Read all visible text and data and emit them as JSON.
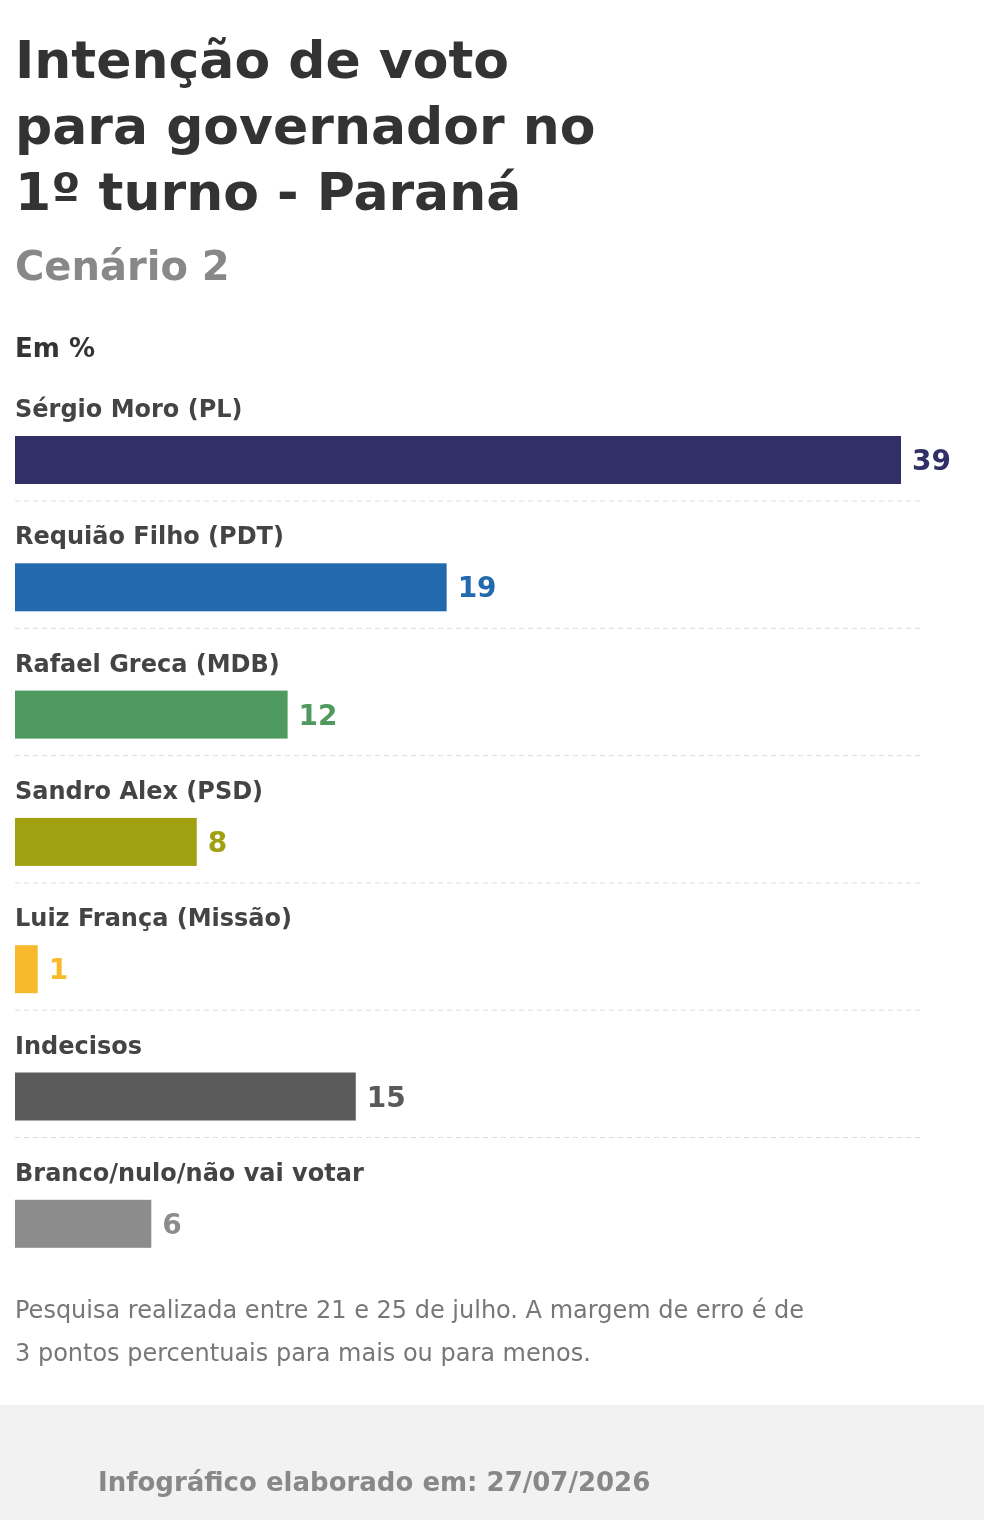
{
  "chart_data": {
    "type": "bar",
    "orientation": "horizontal",
    "title": "Intenção de voto para governador no 1º turno - Paraná",
    "subtitle": "Cenário 2",
    "xlabel": "Em %",
    "categories": [
      "Sérgio Moro (PL)",
      "Requião Filho (PDT)",
      "Rafael Greca (MDB)",
      "Sandro Alex (PSD)",
      "Luiz França (Missão)",
      "Indecisos",
      "Branco/nulo/não vai votar"
    ],
    "values": [
      39,
      19,
      12,
      8,
      1,
      15,
      6
    ],
    "colors": [
      "#303066",
      "#2369ad",
      "#4e9a5f",
      "#a0a010",
      "#f8b92b",
      "#5a5a5a",
      "#8c8c8c"
    ],
    "data_labels": true,
    "annotations": [
      "Pesquisa realizada entre 21 e 25 de julho. A margem de erro é de 3 pontos percentuais para mais ou para menos.",
      "Infográfico elaborado em: 27/07/2026"
    ]
  }
}
